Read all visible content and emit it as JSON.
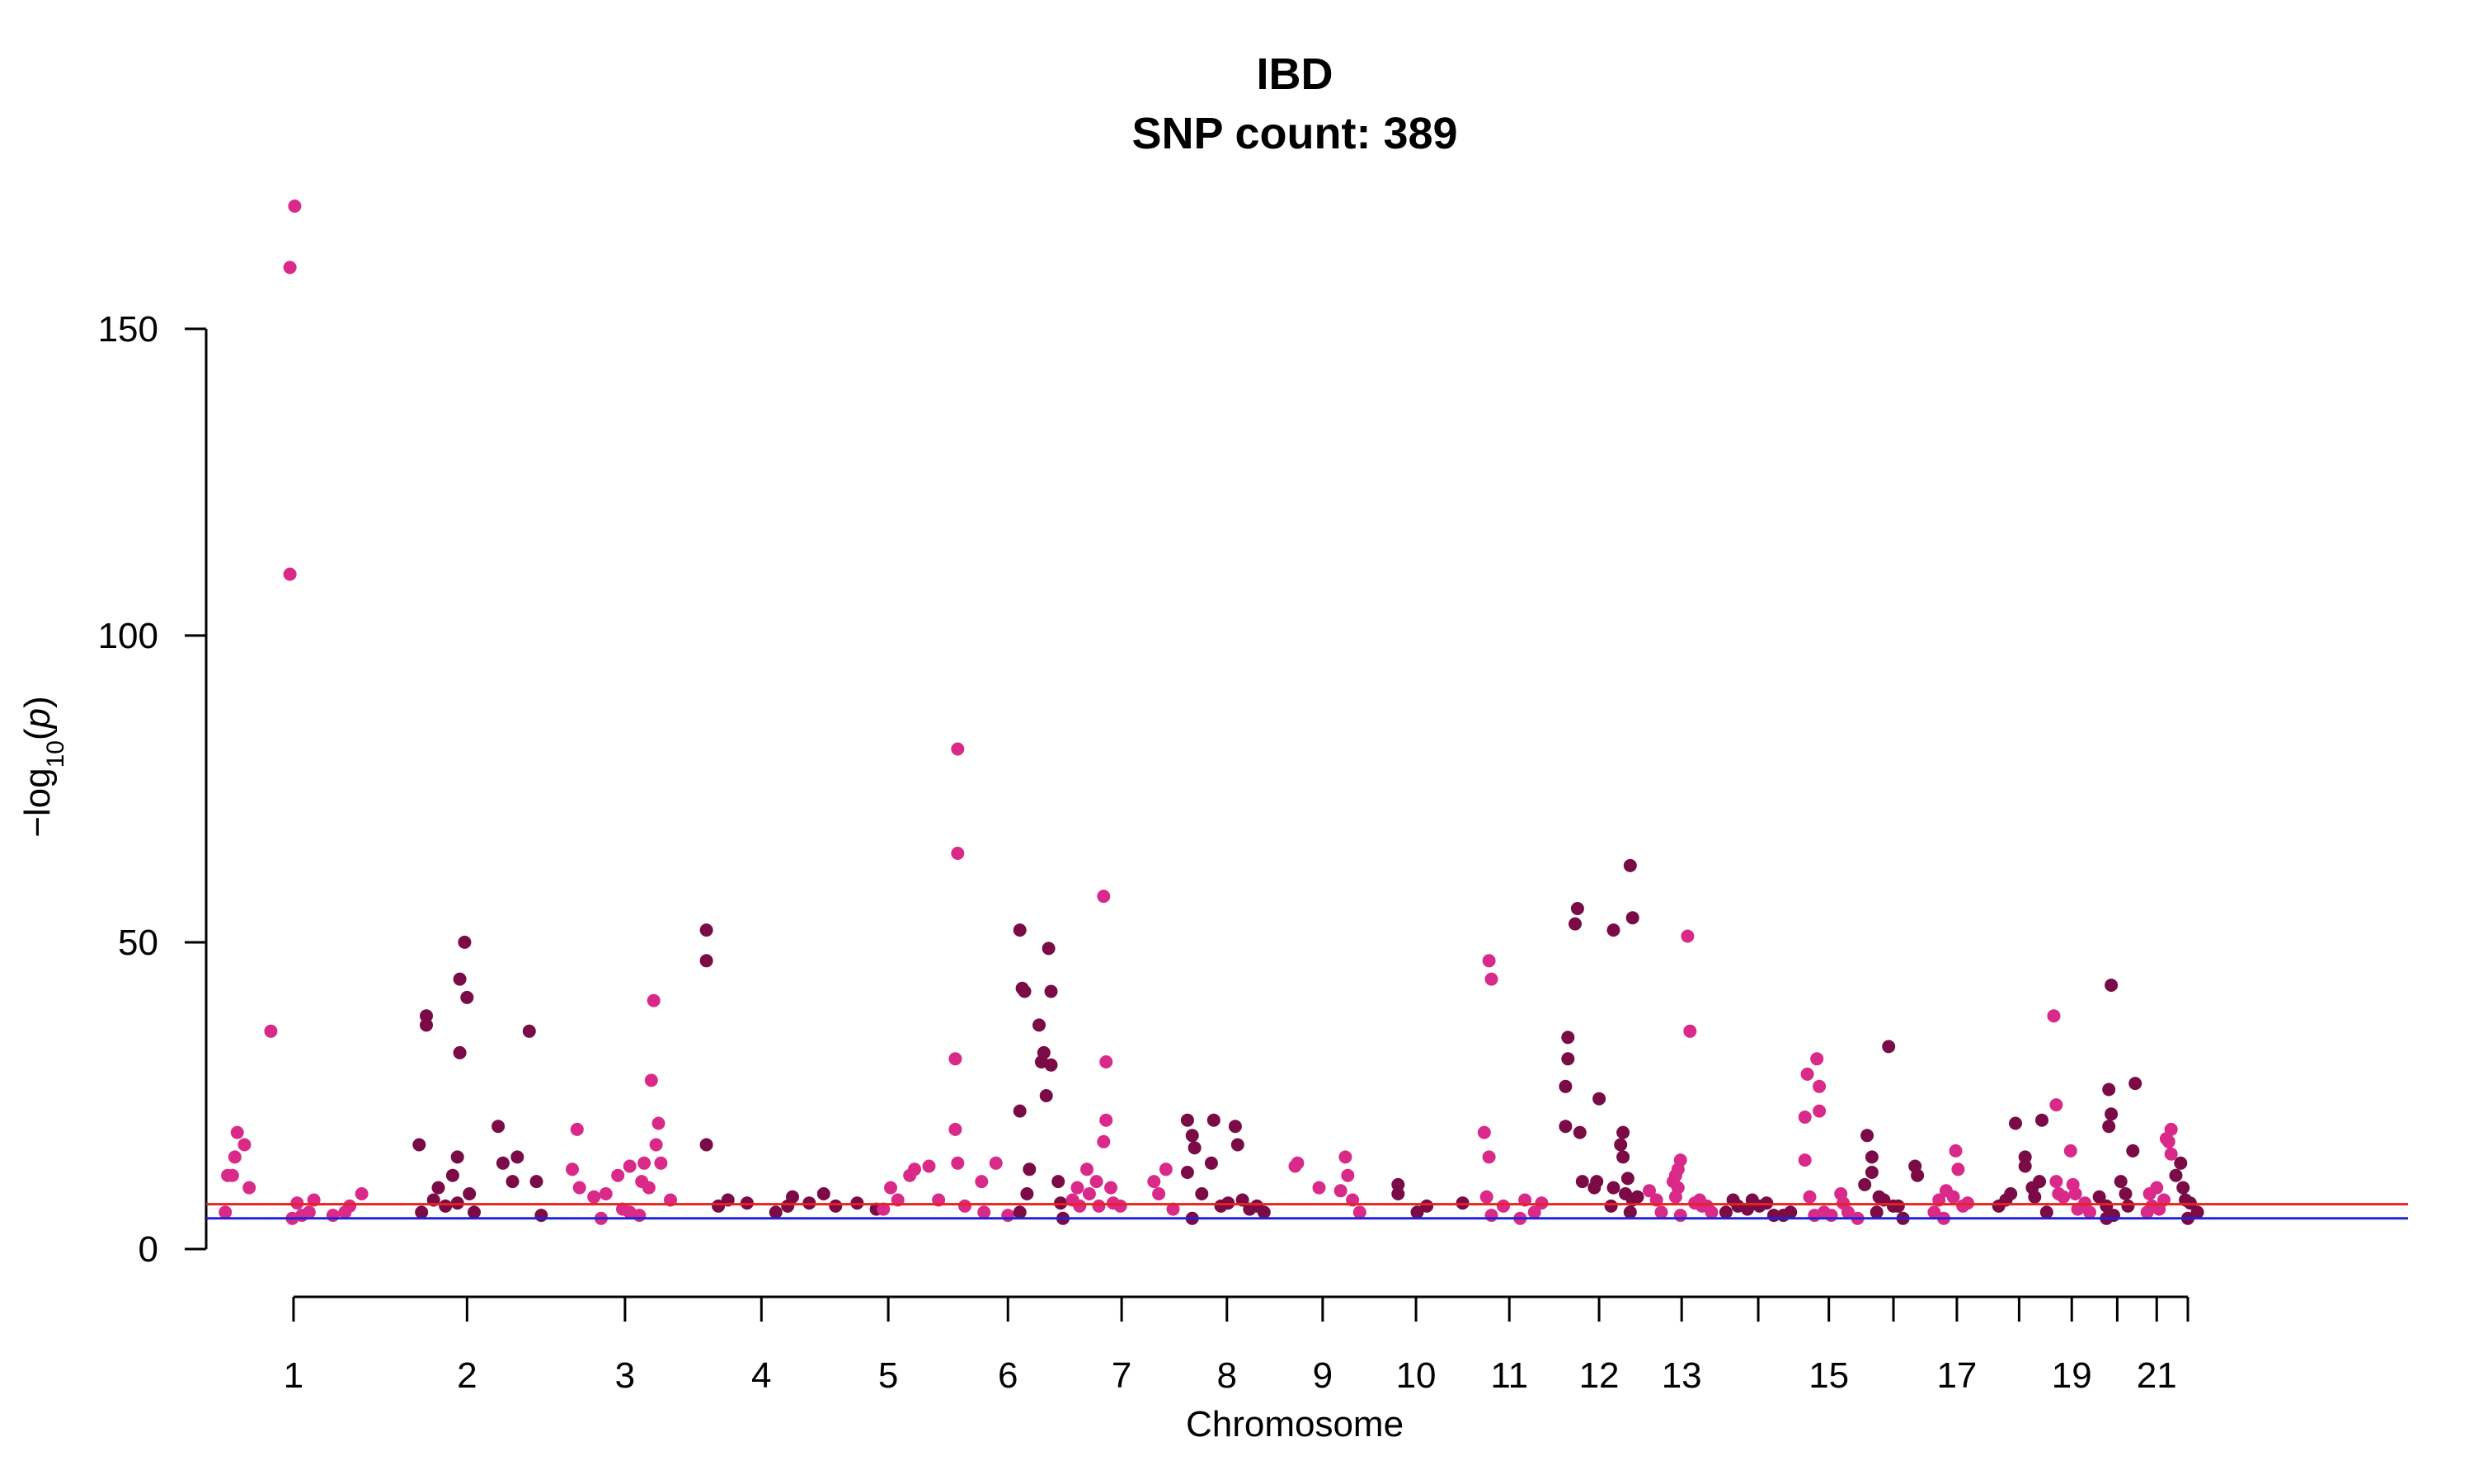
{
  "chart_data": {
    "type": "scatter",
    "title": "IBD",
    "subtitle": "SNP count: 389",
    "xlabel": "Chromosome",
    "ylabel": "-log10(p)",
    "ylim": [
      0,
      170
    ],
    "yticks": [
      0,
      50,
      100,
      150
    ],
    "grid": false,
    "legend": "none",
    "colors": {
      "a": "#d92a8a",
      "b": "#7a0b46",
      "sig": "#e8231f",
      "sug": "#2323d6"
    },
    "threshold_lines": [
      {
        "value": 7.3,
        "color": "#e8231f"
      },
      {
        "value": 5.0,
        "color": "#2323d6"
      }
    ],
    "chromosomes": [
      {
        "chr": 1,
        "start": 0.0,
        "end": 7.3,
        "label": "1"
      },
      {
        "chr": 2,
        "start": 7.3,
        "end": 14.5,
        "label": "2"
      },
      {
        "chr": 3,
        "start": 14.5,
        "end": 20.5,
        "label": "3"
      },
      {
        "chr": 4,
        "start": 20.5,
        "end": 25.9,
        "label": "4"
      },
      {
        "chr": 5,
        "start": 25.9,
        "end": 31.1,
        "label": "5"
      },
      {
        "chr": 6,
        "start": 31.1,
        "end": 35.9,
        "label": "6"
      },
      {
        "chr": 7,
        "start": 35.9,
        "end": 40.6,
        "label": "7"
      },
      {
        "chr": 8,
        "start": 40.6,
        "end": 44.7,
        "label": "8"
      },
      {
        "chr": 9,
        "start": 44.7,
        "end": 48.6,
        "label": "9"
      },
      {
        "chr": 10,
        "start": 48.6,
        "end": 52.5,
        "label": "10"
      },
      {
        "chr": 11,
        "start": 52.5,
        "end": 56.4,
        "label": "11"
      },
      {
        "chr": 12,
        "start": 56.4,
        "end": 60.0,
        "label": "12"
      },
      {
        "chr": 13,
        "start": 60.0,
        "end": 63.3,
        "label": "13"
      },
      {
        "chr": 14,
        "start": 63.3,
        "end": 66.4,
        "label": ""
      },
      {
        "chr": 15,
        "start": 66.4,
        "end": 69.2,
        "label": "15"
      },
      {
        "chr": 16,
        "start": 69.2,
        "end": 71.8,
        "label": ""
      },
      {
        "chr": 17,
        "start": 71.8,
        "end": 74.5,
        "label": "17"
      },
      {
        "chr": 18,
        "start": 74.5,
        "end": 77.0,
        "label": ""
      },
      {
        "chr": 19,
        "start": 77.0,
        "end": 78.9,
        "label": "19"
      },
      {
        "chr": 20,
        "start": 78.9,
        "end": 80.8,
        "label": ""
      },
      {
        "chr": 21,
        "start": 80.8,
        "end": 82.2,
        "label": "21"
      },
      {
        "chr": 22,
        "start": 82.2,
        "end": 83.4,
        "label": ""
      }
    ],
    "points": [
      [
        1,
        2.7,
        35.5
      ],
      [
        1,
        1.3,
        19
      ],
      [
        1,
        1.6,
        17
      ],
      [
        1,
        1.2,
        15
      ],
      [
        1,
        0.9,
        12
      ],
      [
        1,
        1.1,
        12
      ],
      [
        1,
        1.8,
        10
      ],
      [
        1,
        0.8,
        6
      ],
      [
        1,
        3.7,
        170
      ],
      [
        1,
        3.5,
        160
      ],
      [
        1,
        3.5,
        110
      ],
      [
        1,
        3.8,
        7.5
      ],
      [
        1,
        4.5,
        8
      ],
      [
        1,
        4.3,
        6
      ],
      [
        1,
        4.0,
        5.5
      ],
      [
        1,
        3.6,
        5
      ],
      [
        1,
        5.3,
        5.5
      ],
      [
        1,
        5.8,
        6
      ],
      [
        1,
        6.0,
        7
      ],
      [
        1,
        6.5,
        9
      ],
      [
        2,
        8.9,
        17
      ],
      [
        2,
        9.2,
        38
      ],
      [
        2,
        9.2,
        36.5
      ],
      [
        2,
        9.5,
        8
      ],
      [
        2,
        9.7,
        10
      ],
      [
        2,
        9.0,
        6
      ],
      [
        2,
        10.0,
        7
      ],
      [
        2,
        10.8,
        50
      ],
      [
        2,
        10.6,
        44
      ],
      [
        2,
        10.9,
        41
      ],
      [
        2,
        10.6,
        32
      ],
      [
        2,
        10.5,
        15
      ],
      [
        2,
        10.3,
        12
      ],
      [
        2,
        11.0,
        9
      ],
      [
        2,
        11.2,
        6
      ],
      [
        2,
        10.5,
        7.5
      ],
      [
        2,
        12.2,
        20
      ],
      [
        2,
        12.4,
        14
      ],
      [
        2,
        13.0,
        15
      ],
      [
        2,
        12.8,
        11
      ],
      [
        2,
        13.5,
        35.5
      ],
      [
        2,
        13.8,
        11
      ],
      [
        2,
        14.0,
        5.5
      ],
      [
        3,
        15.5,
        19.5
      ],
      [
        3,
        15.3,
        13
      ],
      [
        3,
        15.6,
        10
      ],
      [
        3,
        16.2,
        8.5
      ],
      [
        3,
        16.7,
        9
      ],
      [
        3,
        17.2,
        12
      ],
      [
        3,
        17.7,
        13.5
      ],
      [
        3,
        18.3,
        14
      ],
      [
        3,
        18.7,
        40.5
      ],
      [
        3,
        18.6,
        27.5
      ],
      [
        3,
        18.9,
        20.5
      ],
      [
        3,
        18.8,
        17
      ],
      [
        3,
        19.0,
        14
      ],
      [
        3,
        18.5,
        10
      ],
      [
        3,
        18.2,
        11
      ],
      [
        3,
        19.4,
        8
      ],
      [
        3,
        17.7,
        6
      ],
      [
        3,
        18.1,
        5.5
      ],
      [
        3,
        17.4,
        6.5
      ],
      [
        3,
        16.5,
        5
      ],
      [
        4,
        20.9,
        52
      ],
      [
        4,
        20.9,
        47
      ],
      [
        4,
        20.9,
        17
      ],
      [
        4,
        21.8,
        8
      ],
      [
        4,
        22.6,
        7.5
      ],
      [
        4,
        21.4,
        7
      ],
      [
        4,
        23.8,
        6
      ],
      [
        4,
        24.5,
        8.5
      ],
      [
        4,
        24.3,
        7
      ],
      [
        4,
        25.2,
        7.5
      ],
      [
        4,
        25.8,
        9
      ],
      [
        4,
        26.3,
        7
      ],
      [
        4,
        27.2,
        7.5
      ],
      [
        4,
        28.0,
        6.5
      ],
      [
        5,
        28.6,
        10
      ],
      [
        5,
        28.9,
        8
      ],
      [
        5,
        29.4,
        12
      ],
      [
        5,
        29.6,
        13
      ],
      [
        5,
        28.3,
        6.5
      ],
      [
        5,
        30.2,
        13.5
      ],
      [
        5,
        30.6,
        8
      ],
      [
        5,
        31.4,
        81.5
      ],
      [
        5,
        31.4,
        64.5
      ],
      [
        5,
        31.3,
        31
      ],
      [
        5,
        31.3,
        19.5
      ],
      [
        5,
        31.4,
        14
      ],
      [
        5,
        31.7,
        7
      ],
      [
        5,
        32.4,
        11
      ],
      [
        5,
        32.5,
        6
      ],
      [
        5,
        33.0,
        14
      ],
      [
        5,
        33.5,
        5.5
      ],
      [
        6,
        34.0,
        52
      ],
      [
        6,
        34.1,
        42.5
      ],
      [
        6,
        34.2,
        42
      ],
      [
        6,
        34.0,
        22.5
      ],
      [
        6,
        34.3,
        9
      ],
      [
        6,
        34.0,
        6
      ],
      [
        6,
        34.4,
        13
      ],
      [
        6,
        34.8,
        36.5
      ],
      [
        6,
        34.9,
        30.5
      ],
      [
        6,
        35.0,
        32
      ],
      [
        6,
        35.2,
        49
      ],
      [
        6,
        35.3,
        42
      ],
      [
        6,
        35.1,
        25
      ],
      [
        6,
        35.3,
        30
      ],
      [
        6,
        35.6,
        11
      ],
      [
        6,
        35.7,
        7.5
      ],
      [
        6,
        35.8,
        5
      ],
      [
        7,
        36.2,
        8
      ],
      [
        7,
        36.4,
        10
      ],
      [
        7,
        36.5,
        7
      ],
      [
        7,
        36.8,
        13
      ],
      [
        7,
        36.9,
        9
      ],
      [
        7,
        37.2,
        11
      ],
      [
        7,
        37.3,
        7
      ],
      [
        7,
        37.5,
        57.5
      ],
      [
        7,
        37.6,
        30.5
      ],
      [
        7,
        37.6,
        21
      ],
      [
        7,
        37.5,
        17.5
      ],
      [
        7,
        37.8,
        10
      ],
      [
        7,
        37.9,
        7.5
      ],
      [
        7,
        38.2,
        7
      ],
      [
        7,
        39.6,
        11
      ],
      [
        7,
        39.8,
        9
      ],
      [
        7,
        40.1,
        13
      ],
      [
        7,
        40.4,
        6.5
      ],
      [
        8,
        41.0,
        21
      ],
      [
        8,
        41.2,
        18.5
      ],
      [
        8,
        41.3,
        16.5
      ],
      [
        8,
        41.0,
        12.5
      ],
      [
        8,
        41.6,
        9
      ],
      [
        8,
        41.2,
        5
      ],
      [
        8,
        42.1,
        21
      ],
      [
        8,
        42.0,
        14
      ],
      [
        8,
        42.4,
        7
      ],
      [
        8,
        42.7,
        7.5
      ],
      [
        8,
        43.0,
        20
      ],
      [
        8,
        43.1,
        17
      ],
      [
        8,
        43.3,
        8
      ],
      [
        8,
        43.6,
        6.5
      ],
      [
        8,
        43.9,
        7
      ],
      [
        8,
        44.2,
        6
      ],
      [
        9,
        45.5,
        13.5
      ],
      [
        9,
        45.6,
        14
      ],
      [
        9,
        46.5,
        10
      ],
      [
        9,
        47.6,
        15
      ],
      [
        9,
        47.7,
        12
      ],
      [
        9,
        47.4,
        9.5
      ],
      [
        9,
        47.9,
        8
      ],
      [
        9,
        48.2,
        6
      ],
      [
        10,
        49.8,
        10.5
      ],
      [
        10,
        49.8,
        9
      ],
      [
        10,
        51.0,
        7
      ],
      [
        10,
        52.5,
        7.5
      ],
      [
        10,
        50.6,
        6
      ],
      [
        11,
        53.4,
        19
      ],
      [
        11,
        53.6,
        15
      ],
      [
        11,
        53.6,
        47
      ],
      [
        11,
        53.7,
        44
      ],
      [
        11,
        53.5,
        8.5
      ],
      [
        11,
        53.7,
        5.5
      ],
      [
        11,
        54.2,
        7
      ],
      [
        11,
        54.9,
        5
      ],
      [
        11,
        55.1,
        8
      ],
      [
        11,
        55.5,
        6
      ],
      [
        11,
        55.8,
        7.5
      ],
      [
        12,
        56.9,
        34.5
      ],
      [
        12,
        56.9,
        31
      ],
      [
        12,
        56.8,
        26.5
      ],
      [
        12,
        56.8,
        20
      ],
      [
        12,
        57.3,
        55.5
      ],
      [
        12,
        57.2,
        53
      ],
      [
        12,
        57.4,
        19
      ],
      [
        12,
        57.5,
        11
      ],
      [
        12,
        58.2,
        24.5
      ],
      [
        12,
        58.1,
        11
      ],
      [
        12,
        58.0,
        10
      ],
      [
        12,
        58.8,
        52
      ],
      [
        12,
        58.8,
        10
      ],
      [
        12,
        58.7,
        7
      ],
      [
        12,
        59.2,
        19
      ],
      [
        12,
        59.1,
        17
      ],
      [
        12,
        59.2,
        15
      ],
      [
        12,
        59.5,
        62.5
      ],
      [
        12,
        59.6,
        54
      ],
      [
        12,
        59.4,
        11.5
      ],
      [
        12,
        59.3,
        9
      ],
      [
        12,
        59.6,
        8
      ],
      [
        12,
        59.5,
        6
      ],
      [
        12,
        59.8,
        8.5
      ],
      [
        13,
        60.3,
        9.5
      ],
      [
        13,
        60.6,
        8
      ],
      [
        13,
        60.8,
        6
      ],
      [
        13,
        61.3,
        11
      ],
      [
        13,
        61.4,
        12
      ],
      [
        13,
        61.6,
        14.5
      ],
      [
        13,
        61.5,
        13
      ],
      [
        13,
        61.5,
        10
      ],
      [
        13,
        61.4,
        8.5
      ],
      [
        13,
        61.6,
        5.5
      ],
      [
        13,
        61.9,
        51
      ],
      [
        13,
        62.0,
        35.5
      ],
      [
        13,
        62.2,
        7.5
      ],
      [
        13,
        62.5,
        7
      ],
      [
        13,
        62.9,
        6
      ],
      [
        14,
        63.8,
        8
      ],
      [
        14,
        64.0,
        7
      ],
      [
        14,
        64.4,
        6.5
      ],
      [
        14,
        64.6,
        8
      ],
      [
        14,
        65.2,
        7.5
      ],
      [
        14,
        65.5,
        5.5
      ],
      [
        14,
        65.9,
        5.5
      ],
      [
        14,
        66.2,
        6
      ],
      [
        15,
        66.9,
        28.5
      ],
      [
        15,
        66.8,
        21.5
      ],
      [
        15,
        66.8,
        14.5
      ],
      [
        15,
        67.0,
        8.5
      ],
      [
        15,
        67.3,
        31
      ],
      [
        15,
        67.4,
        26.5
      ],
      [
        15,
        67.4,
        22.5
      ],
      [
        15,
        67.2,
        5.5
      ],
      [
        15,
        67.6,
        6
      ],
      [
        15,
        68.3,
        9
      ],
      [
        15,
        68.4,
        7.5
      ],
      [
        15,
        68.6,
        6
      ],
      [
        15,
        69.0,
        5
      ],
      [
        16,
        69.4,
        18.5
      ],
      [
        16,
        69.3,
        10.5
      ],
      [
        16,
        69.6,
        15
      ],
      [
        16,
        69.6,
        12.5
      ],
      [
        16,
        69.9,
        8.5
      ],
      [
        16,
        70.1,
        8
      ],
      [
        16,
        70.3,
        33
      ],
      [
        16,
        70.7,
        7
      ],
      [
        16,
        70.9,
        5
      ],
      [
        16,
        71.4,
        13.5
      ],
      [
        16,
        71.5,
        12
      ],
      [
        17,
        72.2,
        6
      ],
      [
        17,
        72.6,
        5
      ],
      [
        17,
        72.7,
        9.5
      ],
      [
        17,
        73.0,
        8.5
      ],
      [
        17,
        73.1,
        16
      ],
      [
        17,
        73.2,
        13
      ],
      [
        17,
        73.6,
        7.5
      ],
      [
        18,
        74.9,
        7
      ],
      [
        18,
        75.2,
        8
      ],
      [
        18,
        75.6,
        20.5
      ],
      [
        18,
        76.0,
        15
      ],
      [
        18,
        76.0,
        13.5
      ],
      [
        18,
        76.3,
        10
      ],
      [
        18,
        76.4,
        8.5
      ],
      [
        18,
        76.7,
        21
      ],
      [
        18,
        76.9,
        6
      ],
      [
        18,
        76.6,
        11
      ],
      [
        19,
        77.2,
        38
      ],
      [
        19,
        77.3,
        23.5
      ],
      [
        19,
        77.3,
        11
      ],
      [
        19,
        77.4,
        9
      ],
      [
        19,
        77.6,
        8.5
      ],
      [
        19,
        78.0,
        10.5
      ],
      [
        19,
        78.1,
        9
      ],
      [
        19,
        77.9,
        16
      ],
      [
        19,
        78.2,
        6.5
      ],
      [
        19,
        78.5,
        7.5
      ],
      [
        20,
        79.1,
        8.5
      ],
      [
        20,
        79.4,
        7
      ],
      [
        20,
        79.6,
        43
      ],
      [
        20,
        79.5,
        26
      ],
      [
        20,
        79.6,
        22
      ],
      [
        20,
        79.5,
        20
      ],
      [
        20,
        79.7,
        5.5
      ],
      [
        20,
        79.4,
        5
      ],
      [
        20,
        80.0,
        11
      ],
      [
        20,
        80.2,
        9
      ],
      [
        20,
        80.6,
        27
      ],
      [
        20,
        80.5,
        16
      ],
      [
        21,
        81.1,
        6
      ],
      [
        21,
        81.3,
        7
      ],
      [
        21,
        81.5,
        10
      ],
      [
        21,
        81.6,
        6.5
      ],
      [
        21,
        81.9,
        18
      ],
      [
        21,
        82.1,
        19.5
      ],
      [
        21,
        82.0,
        17.5
      ],
      [
        21,
        82.1,
        15.5
      ],
      [
        21,
        81.8,
        8
      ],
      [
        22,
        82.3,
        12
      ],
      [
        22,
        82.5,
        14
      ],
      [
        22,
        82.6,
        10
      ],
      [
        22,
        82.7,
        8
      ],
      [
        22,
        82.8,
        5
      ],
      [
        22,
        82.9,
        7.5
      ]
    ],
    "points_extra": [
      [
        13,
        62.4,
        8
      ],
      [
        13,
        62.7,
        7
      ],
      [
        14,
        63.5,
        6
      ],
      [
        14,
        64.9,
        7
      ],
      [
        15,
        67.9,
        5.5
      ],
      [
        16,
        69.8,
        6
      ],
      [
        16,
        70.5,
        7
      ],
      [
        17,
        72.4,
        8
      ],
      [
        17,
        73.4,
        7
      ],
      [
        18,
        75.4,
        9
      ],
      [
        19,
        78.7,
        6
      ],
      [
        20,
        80.3,
        7
      ],
      [
        21,
        81.2,
        9
      ],
      [
        22,
        83.2,
        6
      ]
    ]
  }
}
